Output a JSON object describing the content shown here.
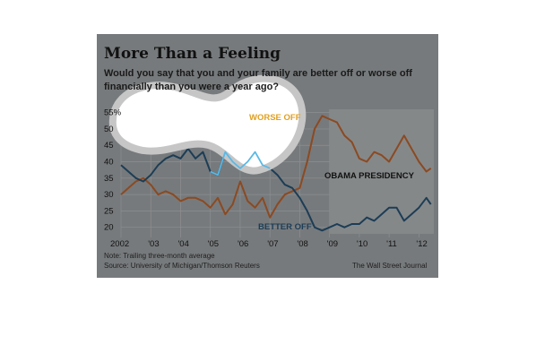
{
  "title": "More Than a Feeling",
  "subtitle_line1": "Would you say that you and your family are better off or worse off",
  "subtitle_line2": "financially than you were a year ago?",
  "note": "Note: Trailing three-month average",
  "source": "Source: University of Michigan/Thomson Reuters",
  "publisher": "The Wall Street Journal",
  "colors": {
    "background": "#777a7c",
    "worse_off": "#8b4a22",
    "better_off": "#1c3d56",
    "highlight_line": "#5ab8e6",
    "blob": "#ffffff"
  },
  "chart_data": {
    "type": "line",
    "title": "More Than a Feeling",
    "xlabel": "",
    "ylabel": "",
    "x_tick_labels": [
      "2002",
      "'03",
      "'04",
      "'05",
      "'06",
      "'07",
      "'08",
      "'09",
      "'10",
      "'11",
      "'12"
    ],
    "x_ticks": [
      2002,
      2003,
      2004,
      2005,
      2006,
      2007,
      2008,
      2009,
      2010,
      2011,
      2012
    ],
    "y_tick_labels": [
      "55%",
      "50",
      "45",
      "40",
      "35",
      "30",
      "25",
      "20"
    ],
    "y_ticks": [
      55,
      50,
      45,
      40,
      35,
      30,
      25,
      20
    ],
    "xlim": [
      2002.0,
      2012.5
    ],
    "ylim": [
      18,
      56
    ],
    "grid": true,
    "series": [
      {
        "name": "WORSE OFF",
        "x": [
          2002.0,
          2002.25,
          2002.5,
          2002.75,
          2003.0,
          2003.25,
          2003.5,
          2003.75,
          2004.0,
          2004.25,
          2004.5,
          2004.75,
          2005.0,
          2005.25,
          2005.5,
          2005.75,
          2006.0,
          2006.25,
          2006.5,
          2006.75,
          2007.0,
          2007.25,
          2007.5,
          2007.75,
          2008.0,
          2008.25,
          2008.5,
          2008.75,
          2009.0,
          2009.25,
          2009.5,
          2009.75,
          2010.0,
          2010.25,
          2010.5,
          2010.75,
          2011.0,
          2011.25,
          2011.5,
          2011.75,
          2012.0,
          2012.25,
          2012.4
        ],
        "values": [
          30,
          32,
          34,
          35,
          33,
          30,
          31,
          30,
          28,
          29,
          29,
          28,
          26,
          29,
          24,
          27,
          34,
          28,
          26,
          29,
          23,
          27,
          30,
          31,
          32,
          40,
          50,
          54,
          53,
          52,
          48,
          46,
          41,
          40,
          43,
          42,
          40,
          44,
          48,
          44,
          40,
          37,
          38
        ]
      },
      {
        "name": "BETTER OFF",
        "x": [
          2002.0,
          2002.25,
          2002.5,
          2002.75,
          2003.0,
          2003.25,
          2003.5,
          2003.75,
          2004.0,
          2004.25,
          2004.5,
          2004.75,
          2005.0,
          2005.25,
          2005.5,
          2005.75,
          2006.0,
          2006.25,
          2006.5,
          2006.75,
          2007.0,
          2007.25,
          2007.5,
          2007.75,
          2008.0,
          2008.25,
          2008.5,
          2008.75,
          2009.0,
          2009.25,
          2009.5,
          2009.75,
          2010.0,
          2010.25,
          2010.5,
          2010.75,
          2011.0,
          2011.25,
          2011.5,
          2011.75,
          2012.0,
          2012.25,
          2012.4
        ],
        "values": [
          39,
          37,
          35,
          34,
          36,
          39,
          41,
          42,
          41,
          44,
          41,
          43,
          37,
          36,
          43,
          40,
          38,
          40,
          43,
          39,
          38,
          36,
          33,
          32,
          29,
          25,
          20,
          19,
          20,
          21,
          20,
          21,
          21,
          23,
          22,
          24,
          26,
          26,
          22,
          24,
          26,
          29,
          27
        ]
      }
    ],
    "annotations": [
      "OBAMA PRESIDENCY"
    ],
    "shaded_region": {
      "x_start": 2009.0,
      "x_end": 2012.5,
      "label": "OBAMA PRESIDENCY"
    }
  }
}
